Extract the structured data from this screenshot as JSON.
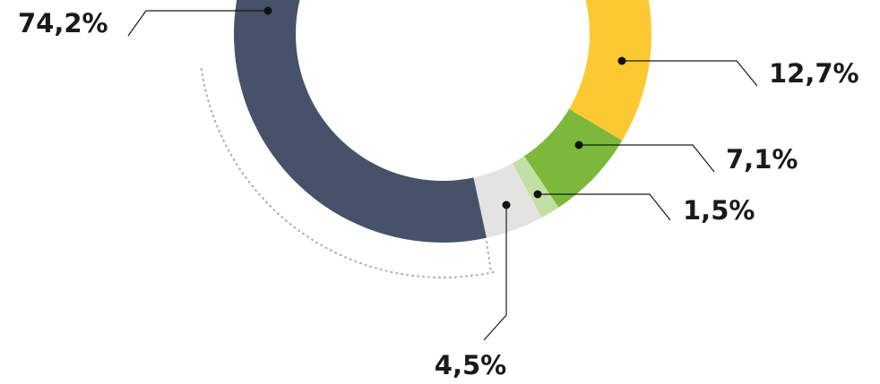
{
  "chart_data": {
    "type": "donut",
    "categories": [
      null,
      null,
      null,
      null,
      null
    ],
    "values": [
      12.7,
      7.1,
      1.5,
      4.5,
      74.2
    ],
    "value_labels": [
      "12,7%",
      "7,1%",
      "1,5%",
      "4,5%",
      "74,2%"
    ],
    "colors": [
      "#fdc932",
      "#7cb93b",
      "#c3e0a4",
      "#e3e3e1",
      "#465269"
    ]
  }
}
